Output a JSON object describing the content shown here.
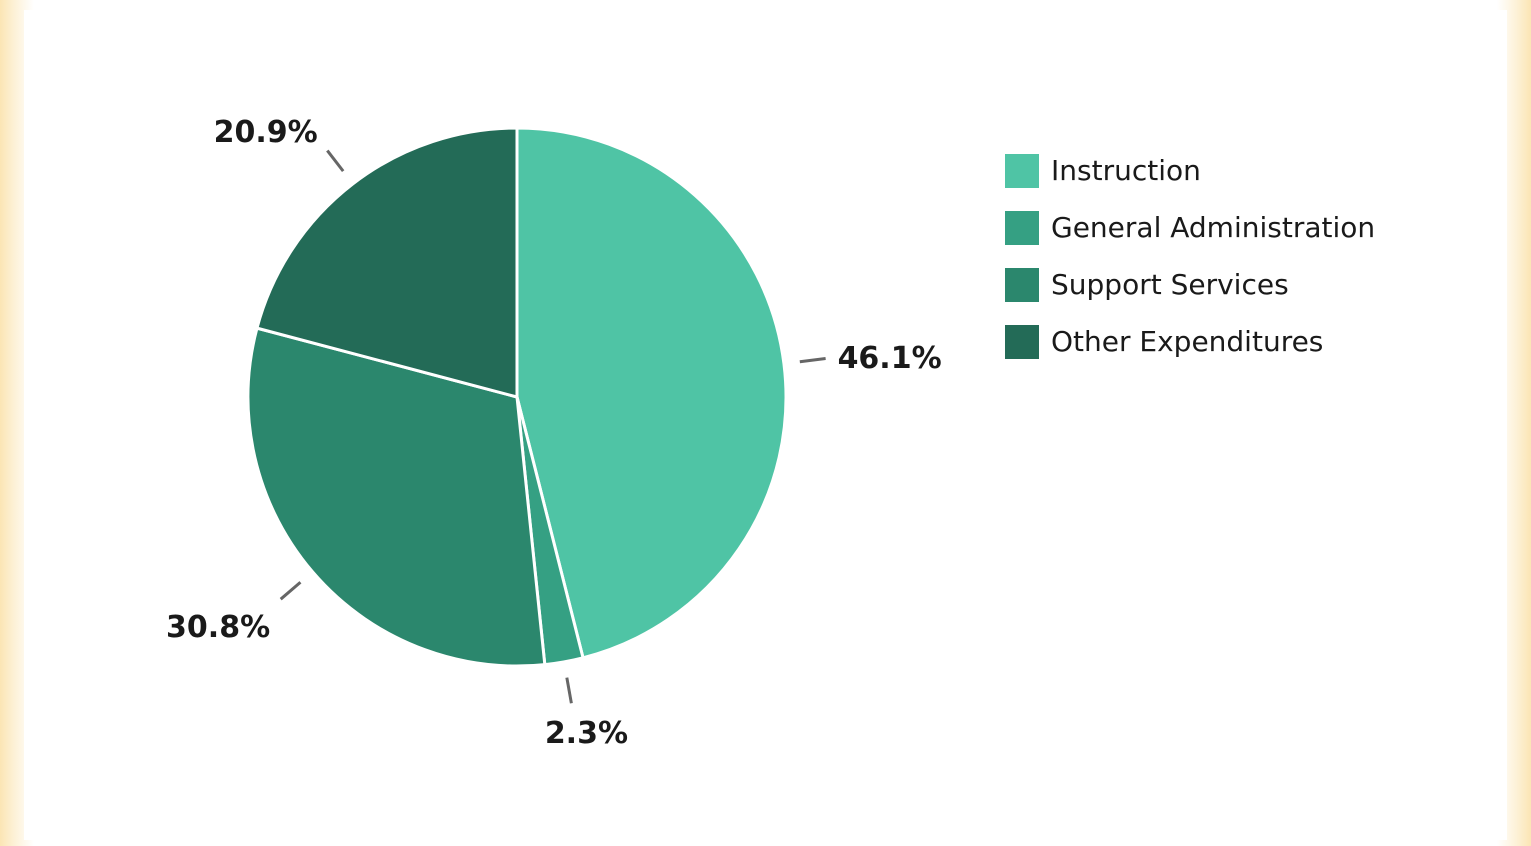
{
  "chart_data": {
    "type": "pie",
    "title": "",
    "categories": [
      "Instruction",
      "General Administration",
      "Support Services",
      "Other Expenditures"
    ],
    "values": [
      46.1,
      2.3,
      30.8,
      20.9
    ],
    "value_labels": [
      "46.1%",
      "2.3%",
      "30.8%",
      "20.9%"
    ],
    "colors": [
      "#4fc4a5",
      "#35a083",
      "#2b876d",
      "#236b57"
    ],
    "legend_position": "right",
    "start_angle_deg": 0,
    "direction": "clockwise"
  },
  "legend": {
    "items": [
      {
        "label": "Instruction",
        "color": "#4fc4a5"
      },
      {
        "label": "General Administration",
        "color": "#35a083"
      },
      {
        "label": "Support Services",
        "color": "#2b876d"
      },
      {
        "label": "Other Expenditures",
        "color": "#236b57"
      }
    ]
  }
}
